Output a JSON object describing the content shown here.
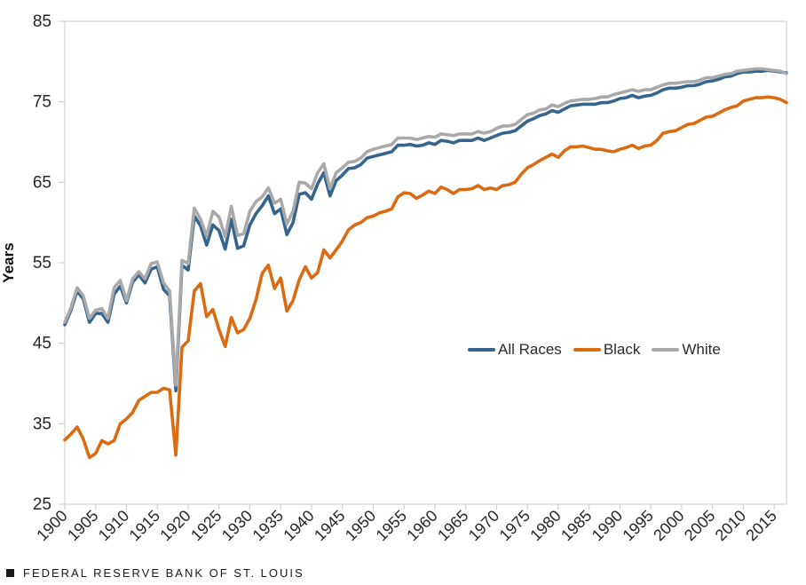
{
  "chart_data": {
    "type": "line",
    "title": "",
    "xlabel": "",
    "ylabel": "Years",
    "xlim": [
      1900,
      2017
    ],
    "ylim": [
      25,
      85
    ],
    "yticks": [
      25,
      35,
      45,
      55,
      65,
      75,
      85
    ],
    "xticks": [
      1900,
      1905,
      1910,
      1915,
      1920,
      1925,
      1930,
      1935,
      1940,
      1945,
      1950,
      1955,
      1960,
      1965,
      1970,
      1975,
      1980,
      1985,
      1990,
      1995,
      2000,
      2005,
      2010,
      2015
    ],
    "x_start_year": 1900,
    "x_step": 1,
    "grid": "off",
    "legend_position": "inside lower-right",
    "series": [
      {
        "name": "All Races",
        "color": "#35648F",
        "values": [
          47.3,
          49.1,
          51.5,
          50.5,
          47.6,
          48.7,
          48.7,
          47.6,
          51.1,
          52.1,
          50.0,
          52.6,
          53.5,
          52.5,
          54.2,
          54.5,
          51.7,
          50.9,
          39.1,
          54.7,
          54.1,
          60.8,
          59.6,
          57.2,
          59.7,
          59.0,
          56.7,
          60.4,
          56.8,
          57.1,
          59.7,
          61.1,
          62.1,
          63.3,
          61.1,
          61.7,
          58.5,
          60.0,
          63.5,
          63.7,
          62.9,
          64.8,
          66.2,
          63.3,
          65.2,
          65.9,
          66.7,
          66.8,
          67.2,
          68.0,
          68.2,
          68.4,
          68.6,
          68.8,
          69.6,
          69.6,
          69.7,
          69.5,
          69.6,
          69.9,
          69.7,
          70.2,
          70.1,
          69.9,
          70.2,
          70.2,
          70.2,
          70.5,
          70.2,
          70.5,
          70.8,
          71.1,
          71.2,
          71.4,
          72.0,
          72.6,
          72.9,
          73.3,
          73.5,
          73.9,
          73.7,
          74.1,
          74.5,
          74.6,
          74.7,
          74.7,
          74.7,
          74.9,
          74.9,
          75.1,
          75.4,
          75.5,
          75.8,
          75.5,
          75.7,
          75.8,
          76.1,
          76.5,
          76.7,
          76.7,
          76.8,
          77.0,
          77.0,
          77.2,
          77.5,
          77.6,
          77.8,
          78.1,
          78.2,
          78.5,
          78.7,
          78.7,
          78.8,
          78.8,
          78.9,
          78.8,
          78.7,
          78.6
        ]
      },
      {
        "name": "Black",
        "color": "#DB6A10",
        "values": [
          33.0,
          33.7,
          34.6,
          33.1,
          30.8,
          31.3,
          32.9,
          32.5,
          32.9,
          35.0,
          35.6,
          36.4,
          37.9,
          38.4,
          38.9,
          38.9,
          39.4,
          39.2,
          31.1,
          44.5,
          45.3,
          51.5,
          52.4,
          48.3,
          49.2,
          46.7,
          44.6,
          48.2,
          46.3,
          46.7,
          48.1,
          50.4,
          53.7,
          54.7,
          51.8,
          53.1,
          49.0,
          50.3,
          52.9,
          54.5,
          53.1,
          53.8,
          56.6,
          55.6,
          56.6,
          57.7,
          59.1,
          59.7,
          60.0,
          60.6,
          60.8,
          61.2,
          61.4,
          61.7,
          63.2,
          63.7,
          63.6,
          63.0,
          63.4,
          63.9,
          63.6,
          64.4,
          64.1,
          63.6,
          64.1,
          64.1,
          64.2,
          64.6,
          64.1,
          64.3,
          64.1,
          64.6,
          64.7,
          65.0,
          66.0,
          66.8,
          67.2,
          67.7,
          68.1,
          68.5,
          68.1,
          68.9,
          69.4,
          69.4,
          69.5,
          69.3,
          69.1,
          69.1,
          68.9,
          68.8,
          69.1,
          69.3,
          69.6,
          69.2,
          69.5,
          69.6,
          70.2,
          71.1,
          71.3,
          71.4,
          71.8,
          72.2,
          72.3,
          72.7,
          73.1,
          73.2,
          73.6,
          74.0,
          74.3,
          74.5,
          75.1,
          75.3,
          75.5,
          75.5,
          75.6,
          75.5,
          75.3,
          74.9
        ]
      },
      {
        "name": "White",
        "color": "#A9A9A9",
        "values": [
          47.6,
          49.4,
          51.9,
          50.9,
          48.1,
          49.1,
          49.3,
          48.1,
          51.9,
          52.8,
          50.3,
          53.0,
          53.9,
          53.0,
          54.9,
          55.1,
          52.5,
          51.5,
          39.8,
          55.3,
          54.9,
          61.8,
          60.4,
          58.3,
          61.4,
          60.7,
          58.2,
          62.0,
          58.4,
          58.6,
          61.4,
          62.6,
          63.2,
          64.3,
          62.4,
          62.9,
          59.8,
          61.4,
          65.0,
          64.9,
          64.2,
          66.2,
          67.3,
          64.2,
          66.2,
          66.8,
          67.5,
          67.6,
          68.0,
          68.8,
          69.1,
          69.3,
          69.5,
          69.7,
          70.5,
          70.5,
          70.5,
          70.3,
          70.5,
          70.7,
          70.6,
          71.0,
          70.9,
          70.8,
          71.0,
          71.0,
          71.0,
          71.3,
          71.1,
          71.3,
          71.7,
          72.0,
          72.0,
          72.2,
          72.8,
          73.4,
          73.6,
          74.0,
          74.1,
          74.6,
          74.4,
          74.8,
          75.1,
          75.2,
          75.3,
          75.3,
          75.4,
          75.6,
          75.6,
          75.9,
          76.1,
          76.3,
          76.5,
          76.3,
          76.5,
          76.5,
          76.8,
          77.1,
          77.3,
          77.3,
          77.4,
          77.5,
          77.5,
          77.7,
          78.0,
          78.0,
          78.2,
          78.4,
          78.5,
          78.8,
          78.9,
          79.0,
          79.1,
          79.1,
          79.0,
          78.9,
          78.8,
          78.5
        ]
      }
    ],
    "style": {
      "axis_line_color": "#C9C9C9",
      "tick_mark_color": "#C9C9C9",
      "tick_label_color": "#262626",
      "line_width": 3.6
    }
  },
  "footer": {
    "source_label": "FEDERAL RESERVE BANK OF ST. LOUIS",
    "square_color": "#1a1a1a"
  }
}
